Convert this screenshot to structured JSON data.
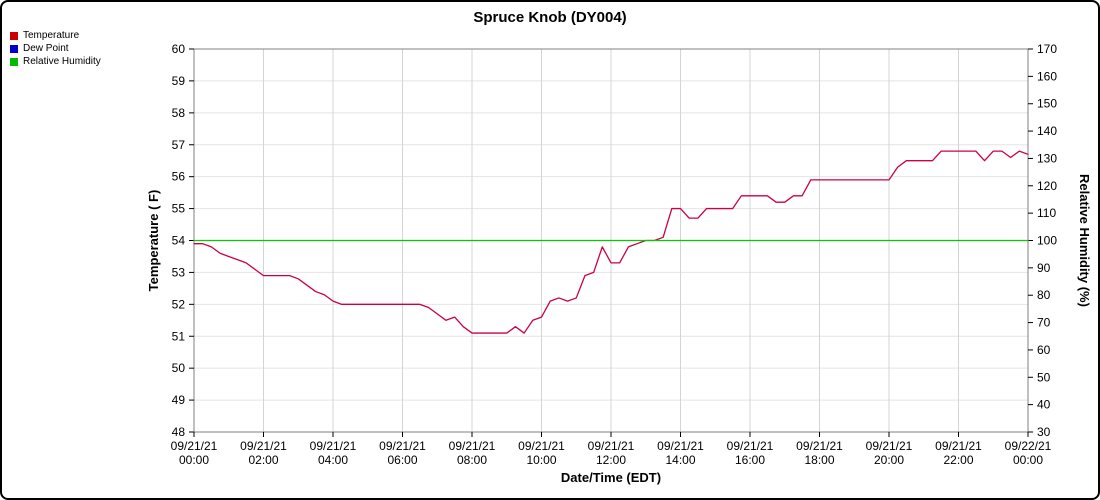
{
  "title": "Spruce Knob (DY004)",
  "legend": {
    "items": [
      {
        "label": "Temperature",
        "color": "#cc0000"
      },
      {
        "label": "Dew Point",
        "color": "#0000cc"
      },
      {
        "label": "Relative Humidity",
        "color": "#00bb00"
      }
    ]
  },
  "chart_data": {
    "type": "line",
    "title": "Spruce Knob (DY004)",
    "xlabel": "Date/Time (EDT)",
    "ylabel_left": "Temperature ( F)",
    "ylabel_right": "Relative Humidity (%)",
    "grid": true,
    "legend_position": "top-left",
    "x_min": 0,
    "x_max": 24,
    "y_left_min": 48,
    "y_left_max": 60,
    "y_left_step": 1,
    "y_right_min": 30,
    "y_right_max": 170,
    "y_right_step": 10,
    "x_ticks": [
      {
        "hour": 0,
        "date": "09/21/21",
        "time": "00:00"
      },
      {
        "hour": 2,
        "date": "09/21/21",
        "time": "02:00"
      },
      {
        "hour": 4,
        "date": "09/21/21",
        "time": "04:00"
      },
      {
        "hour": 6,
        "date": "09/21/21",
        "time": "06:00"
      },
      {
        "hour": 8,
        "date": "09/21/21",
        "time": "08:00"
      },
      {
        "hour": 10,
        "date": "09/21/21",
        "time": "10:00"
      },
      {
        "hour": 12,
        "date": "09/21/21",
        "time": "12:00"
      },
      {
        "hour": 14,
        "date": "09/21/21",
        "time": "14:00"
      },
      {
        "hour": 16,
        "date": "09/21/21",
        "time": "16:00"
      },
      {
        "hour": 18,
        "date": "09/21/21",
        "time": "18:00"
      },
      {
        "hour": 20,
        "date": "09/21/21",
        "time": "20:00"
      },
      {
        "hour": 22,
        "date": "09/21/21",
        "time": "22:00"
      },
      {
        "hour": 24,
        "date": "09/22/21",
        "time": "00:00"
      }
    ],
    "series": [
      {
        "name": "Temperature",
        "axis": "left",
        "color": "#cc0044",
        "x_start": 0,
        "x_step": 0.25,
        "values": [
          53.9,
          53.9,
          53.8,
          53.6,
          53.5,
          53.4,
          53.3,
          53.1,
          52.9,
          52.9,
          52.9,
          52.9,
          52.8,
          52.6,
          52.4,
          52.3,
          52.1,
          52.0,
          52.0,
          52.0,
          52.0,
          52.0,
          52.0,
          52.0,
          52.0,
          52.0,
          52.0,
          51.9,
          51.7,
          51.5,
          51.6,
          51.3,
          51.1,
          51.1,
          51.1,
          51.1,
          51.1,
          51.3,
          51.1,
          51.5,
          51.6,
          52.1,
          52.2,
          52.1,
          52.2,
          52.9,
          53.0,
          53.8,
          53.3,
          53.3,
          53.8,
          53.9,
          54.0,
          54.0,
          54.1,
          55.0,
          55.0,
          54.7,
          54.7,
          55.0,
          55.0,
          55.0,
          55.0,
          55.4,
          55.4,
          55.4,
          55.4,
          55.2,
          55.2,
          55.4,
          55.4,
          55.9,
          55.9,
          55.9,
          55.9,
          55.9,
          55.9,
          55.9,
          55.9,
          55.9,
          55.9,
          56.3,
          56.5,
          56.5,
          56.5,
          56.5,
          56.8,
          56.8,
          56.8,
          56.8,
          56.8,
          56.5,
          56.8,
          56.8,
          56.6,
          56.8,
          56.7
        ]
      },
      {
        "name": "Dew Point",
        "axis": "left",
        "color": "#0000cc",
        "x_start": 0,
        "x_step": 0.25,
        "values": []
      },
      {
        "name": "Relative Humidity",
        "axis": "right",
        "color": "#00cc00",
        "x_start": 0,
        "x_step": 24,
        "values": [
          100,
          100
        ]
      }
    ]
  }
}
